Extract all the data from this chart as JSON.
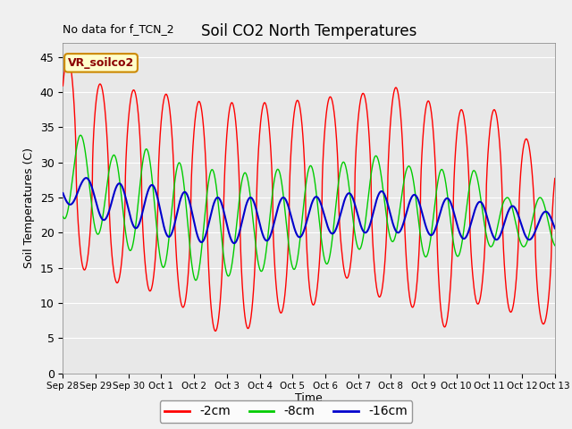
{
  "title": "Soil CO2 North Temperatures",
  "no_data_label": "No data for f_TCN_2",
  "legend_label": "VR_soilco2",
  "ylabel": "Soil Temperatures (C)",
  "xlabel": "Time",
  "xtick_labels": [
    "Sep 28",
    "Sep 29",
    "Sep 30",
    "Oct 1",
    "Oct 2",
    "Oct 3",
    "Oct 4",
    "Oct 5",
    "Oct 6",
    "Oct 7",
    "Oct 8",
    "Oct 9",
    "Oct 10",
    "Oct 11",
    "Oct 12",
    "Oct 13"
  ],
  "ylim": [
    0,
    47
  ],
  "yticks": [
    0,
    5,
    10,
    15,
    20,
    25,
    30,
    35,
    40,
    45
  ],
  "red_color": "#ff0000",
  "green_color": "#00cc00",
  "blue_color": "#0000cc",
  "red_label": "-2cm",
  "green_label": "-8cm",
  "blue_label": "-16cm",
  "bg_color": "#e8e8e8",
  "fig_color": "#f0f0f0",
  "grid_color": "#ffffff",
  "red_peaks": [
    45,
    39,
    41,
    39,
    38.5,
    38.5,
    38.5,
    39,
    39.5,
    40,
    41,
    37.5,
    37.5,
    37.5,
    31
  ],
  "red_troughs": [
    15,
    13,
    12,
    10,
    6,
    6,
    8.5,
    9,
    14,
    11,
    10,
    6,
    10,
    9,
    7
  ],
  "green_peaks": [
    34,
    31,
    32,
    30,
    29,
    28.5,
    29,
    29.5,
    30,
    31,
    29.5,
    29,
    29,
    25
  ],
  "green_troughs": [
    22,
    18,
    17,
    13.5,
    13,
    14.5,
    14.5,
    15,
    16,
    19,
    18.5,
    15,
    18,
    18
  ],
  "blue_peaks": [
    28,
    27,
    27,
    26,
    25,
    25,
    25,
    25,
    25.5,
    26,
    25.5,
    25,
    24.5,
    24
  ],
  "blue_troughs": [
    24,
    21,
    20.5,
    19,
    18.5,
    18.5,
    19,
    19.5,
    20,
    20,
    20,
    19.5,
    19,
    19
  ]
}
